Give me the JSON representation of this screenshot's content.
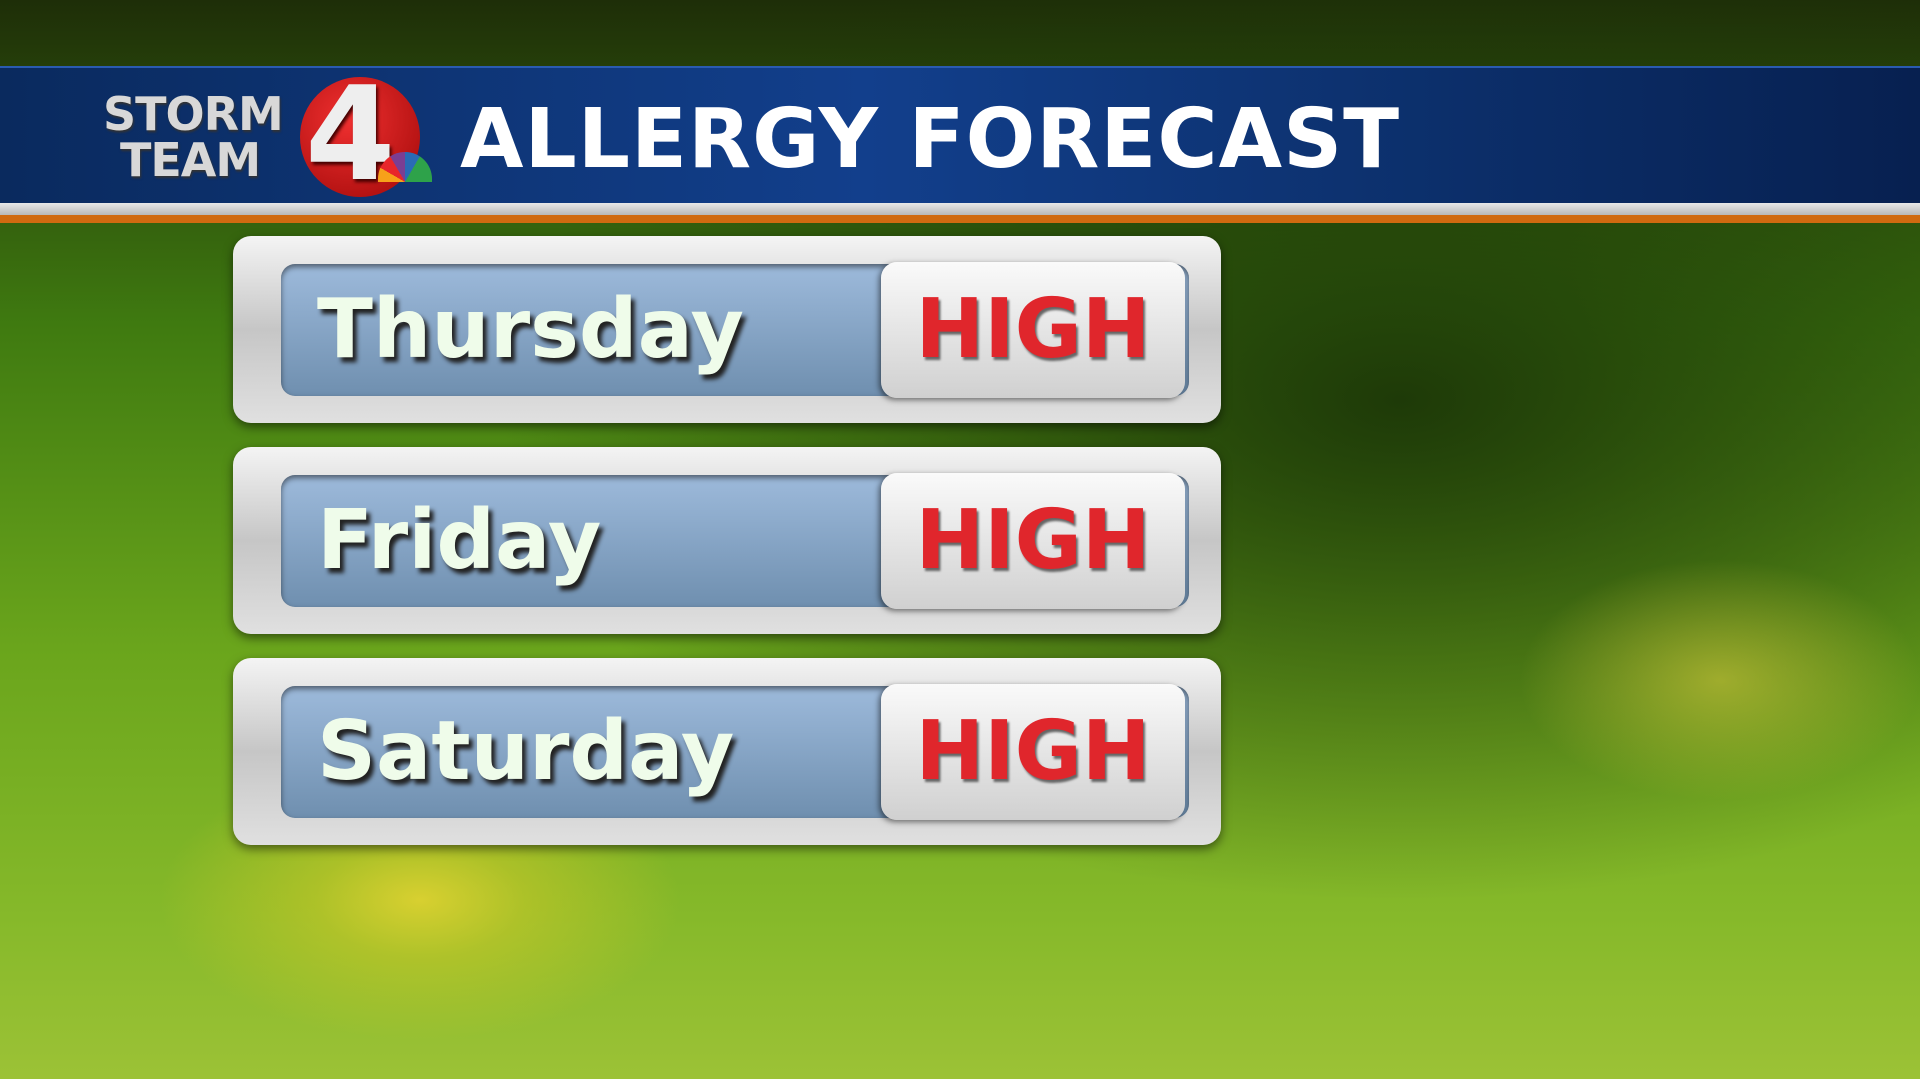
{
  "header": {
    "logo_line1": "STORM",
    "logo_line2": "TEAM",
    "logo_number": "4",
    "title": "ALLERGY FORECAST"
  },
  "forecast": [
    {
      "day": "Thursday",
      "level": "HIGH"
    },
    {
      "day": "Friday",
      "level": "HIGH"
    },
    {
      "day": "Saturday",
      "level": "HIGH"
    }
  ],
  "colors": {
    "level_high": "#e0262c",
    "header_blue": "#0a2a5e",
    "accent_orange": "#d06a10"
  }
}
